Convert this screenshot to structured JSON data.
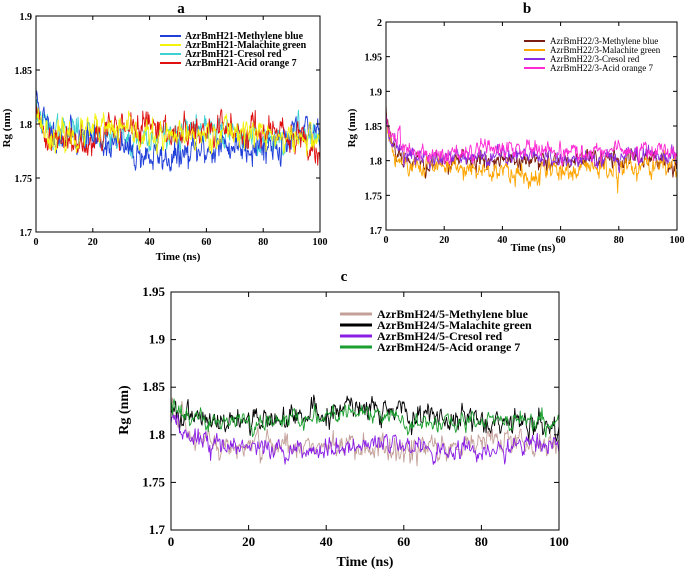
{
  "chart_data": [
    {
      "id": "a",
      "panel_label": "a",
      "type": "line",
      "xlabel": "Time (ns)",
      "ylabel": "Rg (nm)",
      "xlim": [
        0,
        100
      ],
      "ylim": [
        1.7,
        1.9
      ],
      "xticks": [
        0,
        20,
        40,
        60,
        80,
        100
      ],
      "ytick_labels": [
        "1.7",
        "1.75",
        "1.8",
        "1.85",
        "1.9"
      ],
      "yticks": [
        1.7,
        1.75,
        1.8,
        1.85,
        1.9
      ],
      "legend_position": "top-right",
      "series": [
        {
          "name": "AzrBmH21-Methylene blue",
          "color": "#1f3fd8",
          "start": 1.83,
          "mean": 1.797,
          "trend": -0.025,
          "noise": 0.012,
          "seed": 11
        },
        {
          "name": "AzrBmH21-Malachite green",
          "color": "#f2f20a",
          "start": 1.82,
          "mean": 1.79,
          "trend": 0.0,
          "noise": 0.011,
          "seed": 23
        },
        {
          "name": "AzrBmH21-Cresol red",
          "color": "#3fd0d0",
          "start": 1.82,
          "mean": 1.79,
          "trend": 0.0,
          "noise": 0.011,
          "seed": 37
        },
        {
          "name": "AzrBmH21-Acid orange 7",
          "color": "#e01010",
          "start": 1.81,
          "mean": 1.785,
          "trend": 0.01,
          "noise": 0.012,
          "seed": 41
        }
      ],
      "draw_order": [
        2,
        0,
        3,
        1
      ]
    },
    {
      "id": "b",
      "panel_label": "b",
      "type": "line",
      "xlabel": "Time (ns)",
      "ylabel": "Rg (nm)",
      "xlim": [
        0,
        100
      ],
      "ylim": [
        1.7,
        2.0
      ],
      "xticks": [
        0,
        20,
        40,
        60,
        80,
        100
      ],
      "ytick_labels": [
        "1.7",
        "1.75",
        "1.8",
        "1.85",
        "1.9",
        "1.95",
        "2"
      ],
      "yticks": [
        1.7,
        1.75,
        1.8,
        1.85,
        1.9,
        1.95,
        2.0
      ],
      "legend_position": "top-right",
      "series": [
        {
          "name": "AzrBmH22/3-Methylene blue",
          "color": "#7a1c10",
          "start": 1.87,
          "mean": 1.8,
          "trend": 0.0,
          "noise": 0.012,
          "seed": 53
        },
        {
          "name": "AzrBmH22/3-Malachite green",
          "color": "#ffa500",
          "start": 1.86,
          "mean": 1.795,
          "trend": -0.01,
          "noise": 0.013,
          "seed": 61
        },
        {
          "name": "AzrBmH22/3-Cresol red",
          "color": "#8a2be2",
          "start": 1.86,
          "mean": 1.805,
          "trend": 0.0,
          "noise": 0.011,
          "seed": 71
        },
        {
          "name": "AzrBmH22/3-Acid orange 7",
          "color": "#ff2ad4",
          "start": 1.86,
          "mean": 1.81,
          "trend": 0.005,
          "noise": 0.011,
          "seed": 83
        }
      ],
      "draw_order": [
        0,
        1,
        2,
        3
      ]
    },
    {
      "id": "c",
      "panel_label": "c",
      "type": "line",
      "xlabel": "Time (ns)",
      "ylabel": "Rg (nm)",
      "xlim": [
        0,
        100
      ],
      "ylim": [
        1.7,
        1.95
      ],
      "xticks": [
        0,
        20,
        40,
        60,
        80,
        100
      ],
      "ytick_labels": [
        "1.7",
        "1.75",
        "1.8",
        "1.85",
        "1.9",
        "1.95"
      ],
      "yticks": [
        1.7,
        1.75,
        1.8,
        1.85,
        1.9,
        1.95
      ],
      "legend_position": "top-right",
      "series": [
        {
          "name": "AzrBmH24/5-Methylene blue",
          "color": "#c4a09a",
          "start": 1.83,
          "mean": 1.795,
          "trend": -0.01,
          "noise": 0.012,
          "seed": 97
        },
        {
          "name": "AzrBmH24/5-Malachite green",
          "color": "#000000",
          "start": 1.83,
          "mean": 1.805,
          "trend": 0.02,
          "noise": 0.011,
          "seed": 101
        },
        {
          "name": "AzrBmH24/5-Cresol red",
          "color": "#8a1ee6",
          "start": 1.82,
          "mean": 1.787,
          "trend": 0.0,
          "noise": 0.009,
          "seed": 113
        },
        {
          "name": "AzrBmH24/5-Acid orange 7",
          "color": "#1a9e2e",
          "start": 1.83,
          "mean": 1.812,
          "trend": 0.005,
          "noise": 0.008,
          "seed": 127
        }
      ],
      "draw_order": [
        0,
        1,
        3,
        2
      ]
    }
  ]
}
